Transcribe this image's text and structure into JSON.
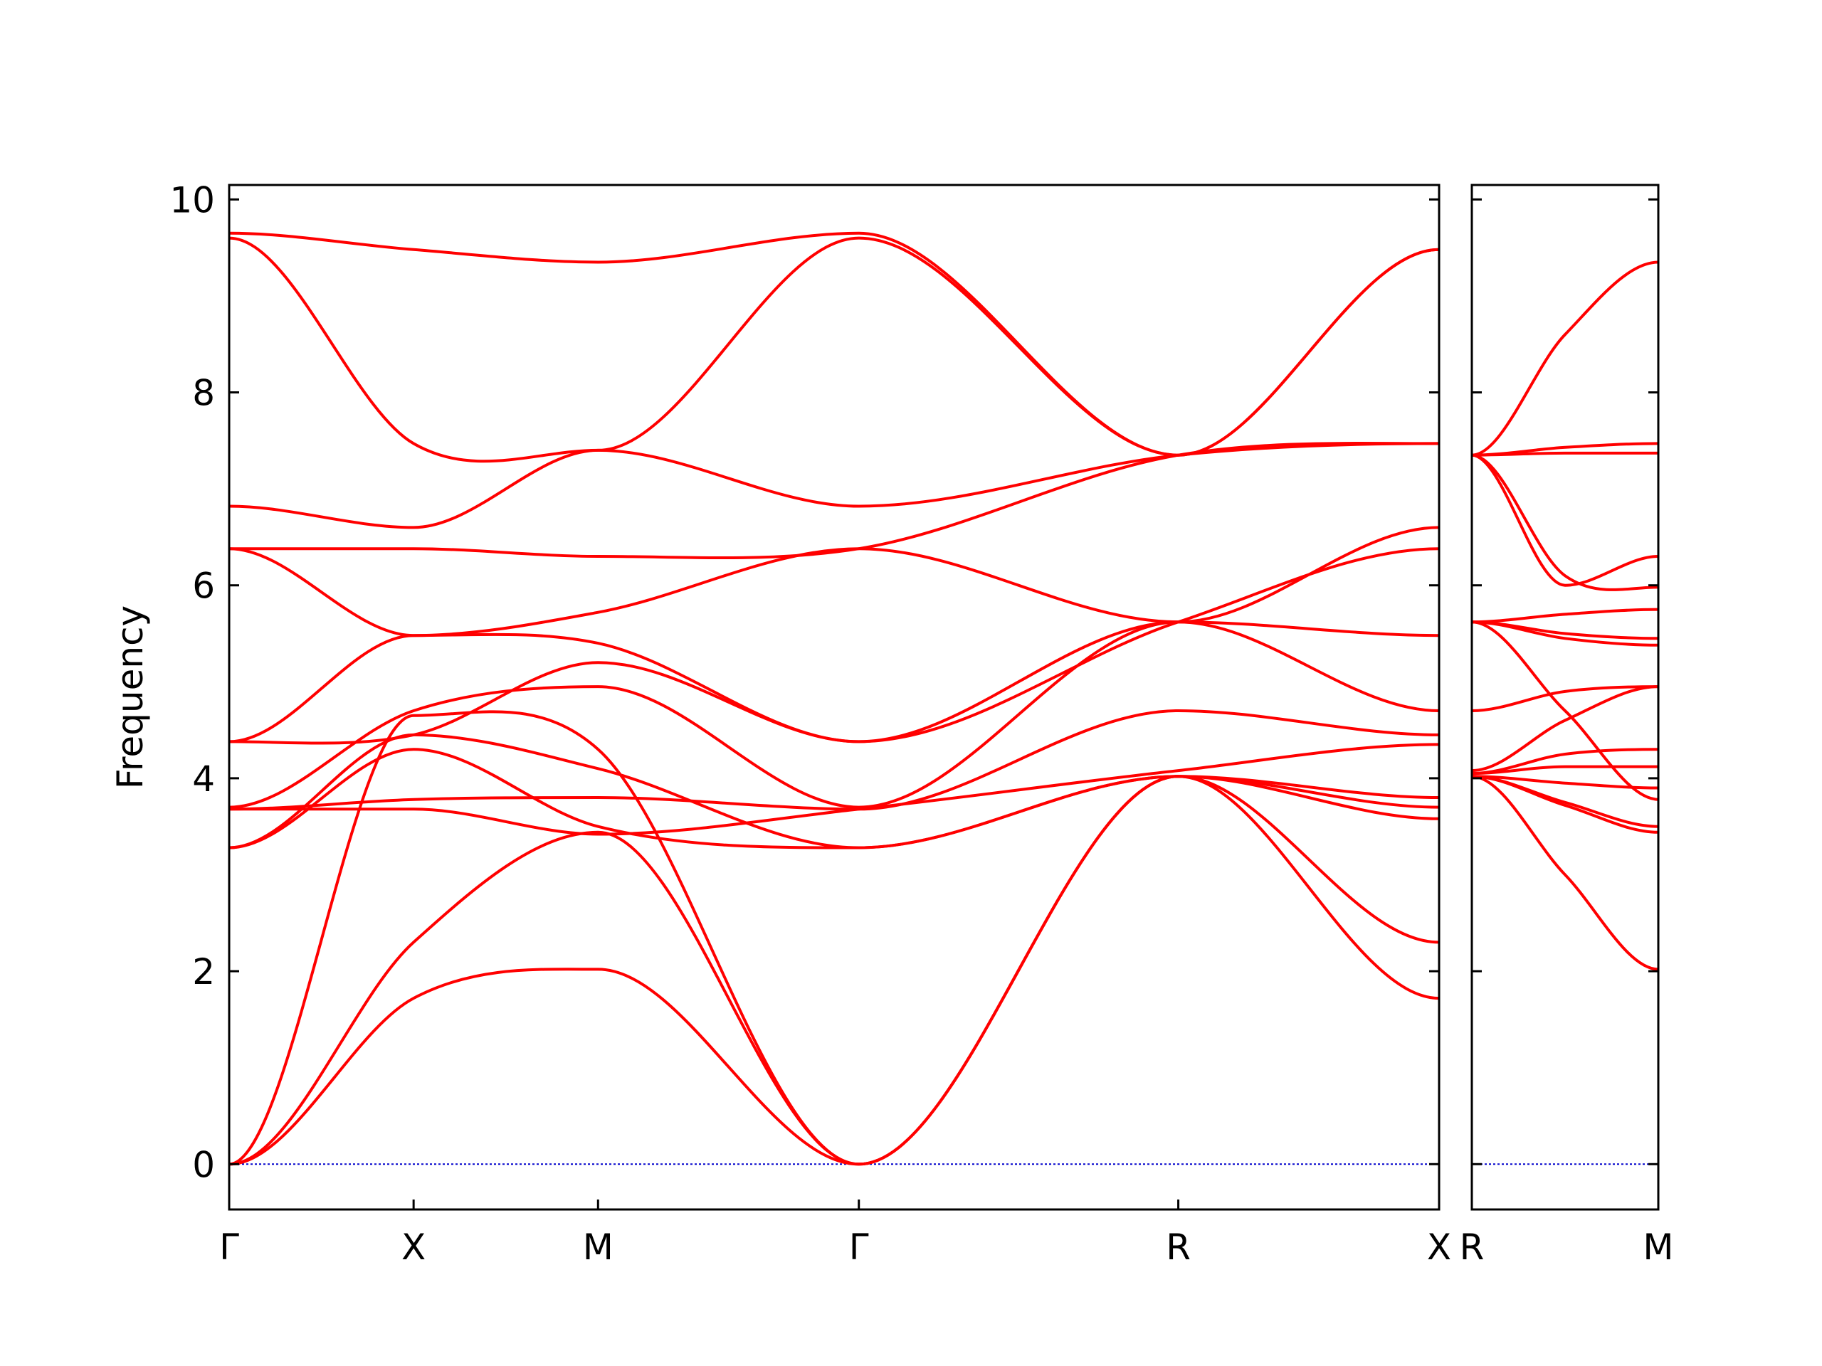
{
  "chart_data": {
    "type": "line",
    "title": "",
    "ylabel": "Frequency",
    "ylim": [
      -0.47,
      10.15
    ],
    "yticks": [
      0,
      2,
      4,
      6,
      8,
      10
    ],
    "grid": false,
    "legend": "none",
    "colors": {
      "bands": "#ff0000",
      "zero_line": "#0000cc",
      "axes": "#000000"
    },
    "panels": [
      {
        "name": "panel-main",
        "x_labels": [
          "Γ",
          "X",
          "M",
          "Γ",
          "R",
          "X"
        ],
        "x_positions": [
          0,
          1,
          2,
          3.414,
          5.146,
          6.56
        ],
        "series_style": "phonon bands",
        "bands": [
          {
            "x": [
              0,
              1,
              2,
              3.414,
              5.146,
              6.56
            ],
            "y": [
              0,
              1.72,
              2.02,
              0,
              4.02,
              1.72
            ]
          },
          {
            "x": [
              0,
              1,
              2,
              3.414,
              5.146,
              6.56
            ],
            "y": [
              0,
              2.3,
              3.44,
              0,
              4.02,
              2.3
            ]
          },
          {
            "x": [
              0,
              1,
              2,
              3.414,
              5.146,
              6.56
            ],
            "y": [
              0,
              4.65,
              4.3,
              0,
              4.02,
              3.58
            ]
          },
          {
            "x": [
              0,
              1,
              2,
              3.414,
              5.146,
              6.56
            ],
            "y": [
              3.28,
              4.3,
              3.5,
              3.28,
              4.02,
              3.7
            ]
          },
          {
            "x": [
              0,
              1,
              2,
              3.414,
              5.146,
              6.56
            ],
            "y": [
              3.28,
              4.45,
              4.1,
              3.28,
              4.02,
              3.8
            ]
          },
          {
            "x": [
              0,
              1,
              2,
              3.414,
              5.146,
              6.56
            ],
            "y": [
              3.68,
              3.68,
              3.42,
              3.68,
              4.08,
              4.35
            ]
          },
          {
            "x": [
              0,
              1,
              2,
              3.414,
              5.146,
              6.56
            ],
            "y": [
              3.68,
              3.78,
              3.8,
              3.68,
              4.7,
              4.45
            ]
          },
          {
            "x": [
              0,
              1,
              2,
              3.414,
              5.146,
              6.56
            ],
            "y": [
              3.7,
              4.7,
              4.95,
              3.7,
              5.62,
              4.7
            ]
          },
          {
            "x": [
              0,
              1,
              2,
              3.414,
              5.146,
              6.56
            ],
            "y": [
              4.38,
              4.45,
              5.2,
              4.38,
              5.62,
              5.48
            ]
          },
          {
            "x": [
              0,
              1,
              2,
              3.414,
              5.146,
              6.56
            ],
            "y": [
              4.38,
              5.48,
              5.4,
              4.38,
              5.62,
              6.38
            ]
          },
          {
            "x": [
              0,
              1,
              2,
              3.414,
              5.146,
              6.56
            ],
            "y": [
              6.38,
              5.48,
              5.72,
              6.38,
              5.62,
              6.6
            ]
          },
          {
            "x": [
              0,
              1,
              2,
              3.414,
              5.146,
              6.56
            ],
            "y": [
              6.38,
              6.38,
              6.3,
              6.38,
              7.35,
              7.47
            ]
          },
          {
            "x": [
              0,
              1,
              2,
              3.414,
              5.146,
              6.56
            ],
            "y": [
              6.82,
              6.6,
              7.4,
              6.82,
              7.35,
              7.47
            ]
          },
          {
            "x": [
              0,
              1,
              2,
              3.414,
              5.146,
              6.56
            ],
            "y": [
              9.6,
              7.47,
              7.4,
              9.6,
              7.35,
              9.48
            ]
          },
          {
            "x": [
              0,
              1,
              2,
              3.414,
              5.146,
              6.56
            ],
            "y": [
              9.65,
              9.48,
              9.35,
              9.65,
              7.35,
              9.48
            ]
          }
        ]
      },
      {
        "name": "panel-right",
        "x_labels": [
          "R",
          "M"
        ],
        "x_positions": [
          0,
          1
        ],
        "series_style": "phonon bands",
        "bands": [
          {
            "x": [
              0,
              0.5,
              1
            ],
            "y": [
              4.02,
              3.0,
              2.02
            ]
          },
          {
            "x": [
              0,
              0.5,
              1
            ],
            "y": [
              4.02,
              3.72,
              3.44
            ]
          },
          {
            "x": [
              0,
              0.5,
              1
            ],
            "y": [
              4.02,
              3.75,
              3.5
            ]
          },
          {
            "x": [
              0,
              0.5,
              1
            ],
            "y": [
              4.02,
              3.95,
              3.9
            ]
          },
          {
            "x": [
              0,
              0.5,
              1
            ],
            "y": [
              4.05,
              4.12,
              4.12
            ]
          },
          {
            "x": [
              0,
              0.5,
              1
            ],
            "y": [
              4.05,
              4.25,
              4.3
            ]
          },
          {
            "x": [
              0,
              0.5,
              1
            ],
            "y": [
              4.08,
              4.6,
              4.95
            ]
          },
          {
            "x": [
              0,
              0.5,
              1
            ],
            "y": [
              4.7,
              4.9,
              4.95
            ]
          },
          {
            "x": [
              0,
              0.5,
              1
            ],
            "y": [
              5.62,
              4.7,
              3.78
            ]
          },
          {
            "x": [
              0,
              0.5,
              1
            ],
            "y": [
              5.62,
              5.45,
              5.38
            ]
          },
          {
            "x": [
              0,
              0.5,
              1
            ],
            "y": [
              5.62,
              5.5,
              5.45
            ]
          },
          {
            "x": [
              0,
              0.5,
              1
            ],
            "y": [
              5.62,
              5.7,
              5.75
            ]
          },
          {
            "x": [
              0,
              0.5,
              1
            ],
            "y": [
              7.35,
              6.1,
              5.98
            ]
          },
          {
            "x": [
              0,
              0.5,
              1
            ],
            "y": [
              7.35,
              6.0,
              6.3
            ]
          },
          {
            "x": [
              0,
              0.5,
              1
            ],
            "y": [
              7.35,
              7.37,
              7.37
            ]
          },
          {
            "x": [
              0,
              0.5,
              1
            ],
            "y": [
              7.35,
              7.43,
              7.47
            ]
          },
          {
            "x": [
              0,
              0.5,
              1
            ],
            "y": [
              7.35,
              8.6,
              9.35
            ]
          }
        ]
      }
    ]
  }
}
